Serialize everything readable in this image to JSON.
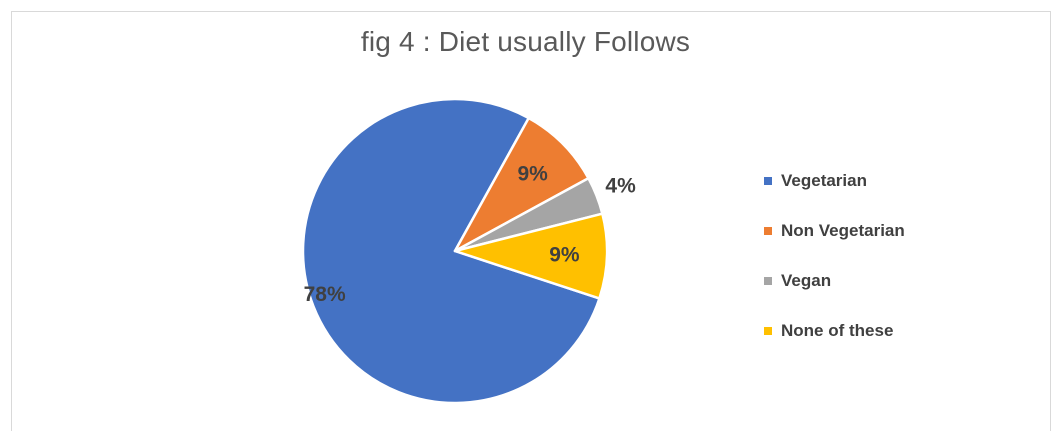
{
  "chart_data": {
    "type": "pie",
    "title": "fig 4 : Diet usually Follows",
    "categories": [
      "Vegetarian",
      "Non Vegetarian",
      "Vegan",
      "None of these"
    ],
    "values": [
      78,
      9,
      4,
      9
    ],
    "data_labels": [
      "78%",
      "9%",
      "4%",
      "9%"
    ],
    "colors": [
      "#4472C4",
      "#ED7D31",
      "#A5A5A5",
      "#FFC000"
    ],
    "legend_position": "right"
  }
}
